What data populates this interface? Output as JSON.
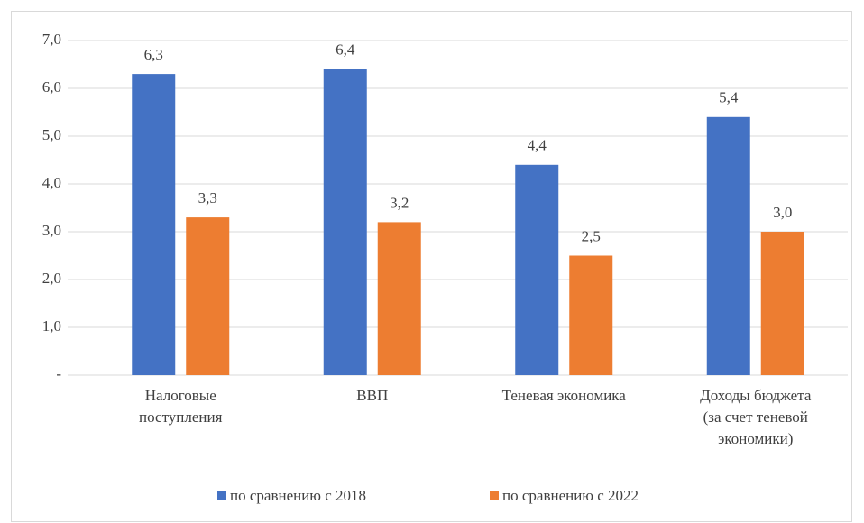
{
  "chart_data": {
    "type": "bar",
    "categories": [
      "Налоговые\nпоступления",
      "ВВП",
      "Теневая экономика",
      "Доходы бюджета\n(за счет теневой\nэкономики)"
    ],
    "series": [
      {
        "name": "по сравнению с 2018",
        "color": "#4472c4",
        "values": [
          6.3,
          6.4,
          4.4,
          5.4
        ],
        "value_labels": [
          "6,3",
          "6,4",
          "4,4",
          "5,4"
        ]
      },
      {
        "name": "по сравнению с 2022",
        "color": "#ed7d31",
        "values": [
          3.3,
          3.2,
          2.5,
          3.0
        ],
        "value_labels": [
          "3,3",
          "3,2",
          "2,5",
          "3,0"
        ]
      }
    ],
    "ylim": [
      0,
      7
    ],
    "yticks": [
      {
        "value": 0,
        "label": "-"
      },
      {
        "value": 1,
        "label": "1,0"
      },
      {
        "value": 2,
        "label": "2,0"
      },
      {
        "value": 3,
        "label": "3,0"
      },
      {
        "value": 4,
        "label": "4,0"
      },
      {
        "value": 5,
        "label": "5,0"
      },
      {
        "value": 6,
        "label": "6,0"
      },
      {
        "value": 7,
        "label": "7,0"
      }
    ],
    "grid": true,
    "legend": "bottom"
  }
}
